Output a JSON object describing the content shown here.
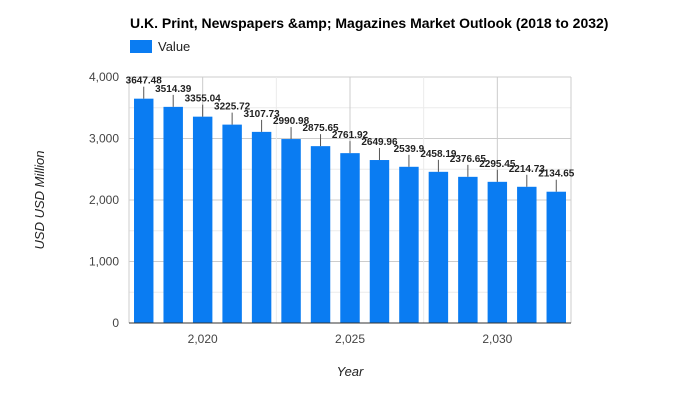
{
  "chart_data": {
    "type": "bar",
    "title": "U.K.  Print, Newspapers &amp; Magazines Market Outlook (2018 to 2032)",
    "xlabel": "Year",
    "ylabel": "USD USD Million",
    "legend": {
      "position": "top-left",
      "entries": [
        "Value"
      ]
    },
    "grid": true,
    "ylim": [
      0,
      4000
    ],
    "yticks": [
      0,
      1000,
      2000,
      3000,
      4000
    ],
    "ytick_labels": [
      "0",
      "1,000",
      "2,000",
      "3,000",
      "4,000"
    ],
    "xlim": [
      2017.5,
      2032.5
    ],
    "xticks": [
      2020,
      2025,
      2030
    ],
    "xtick_labels": [
      "2,020",
      "2,025",
      "2,030"
    ],
    "bar_color": "#0a7cf2",
    "x": [
      2018,
      2019,
      2020,
      2021,
      2022,
      2023,
      2024,
      2025,
      2026,
      2027,
      2028,
      2029,
      2030,
      2031,
      2032
    ],
    "series": [
      {
        "name": "Value",
        "values": [
          3647.48,
          3514.39,
          3355.04,
          3225.72,
          3107.73,
          2990.98,
          2875.65,
          2761.92,
          2649.96,
          2539.9,
          2458.19,
          2376.65,
          2295.45,
          2214.73,
          2134.65
        ],
        "labels": [
          "3647.48",
          "3514.39",
          "3355.04",
          "3225.72",
          "3107.73",
          "2990.98",
          "2875.65",
          "2761.92",
          "2649.96",
          "2539.9",
          "2458.19",
          "2376.65",
          "2295.45",
          "2214.73",
          "2134.65"
        ]
      }
    ]
  }
}
